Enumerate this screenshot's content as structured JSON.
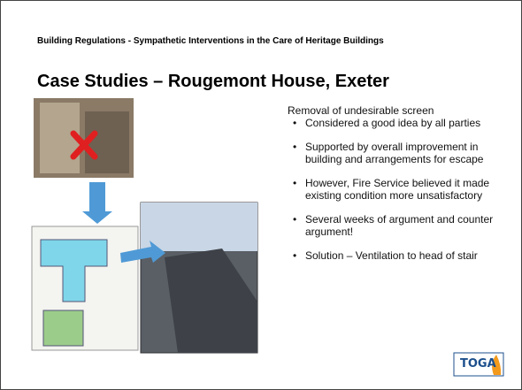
{
  "header": {
    "subtitle": "Building Regulations - Sympathetic Interventions in the Care of Heritage Buildings",
    "title": "Case Studies – Rougemont House, Exeter"
  },
  "body": {
    "intro": "Removal of undesirable screen",
    "bullets": [
      "Considered a good idea by all parties",
      "Supported by overall improvement in building and arrangements for escape",
      "However, Fire Service believed it made existing condition more unsatisfactory",
      "Several weeks of argument and counter argument!",
      "Solution – Ventilation to head of stair"
    ]
  },
  "logo": {
    "text": "TOGA"
  }
}
